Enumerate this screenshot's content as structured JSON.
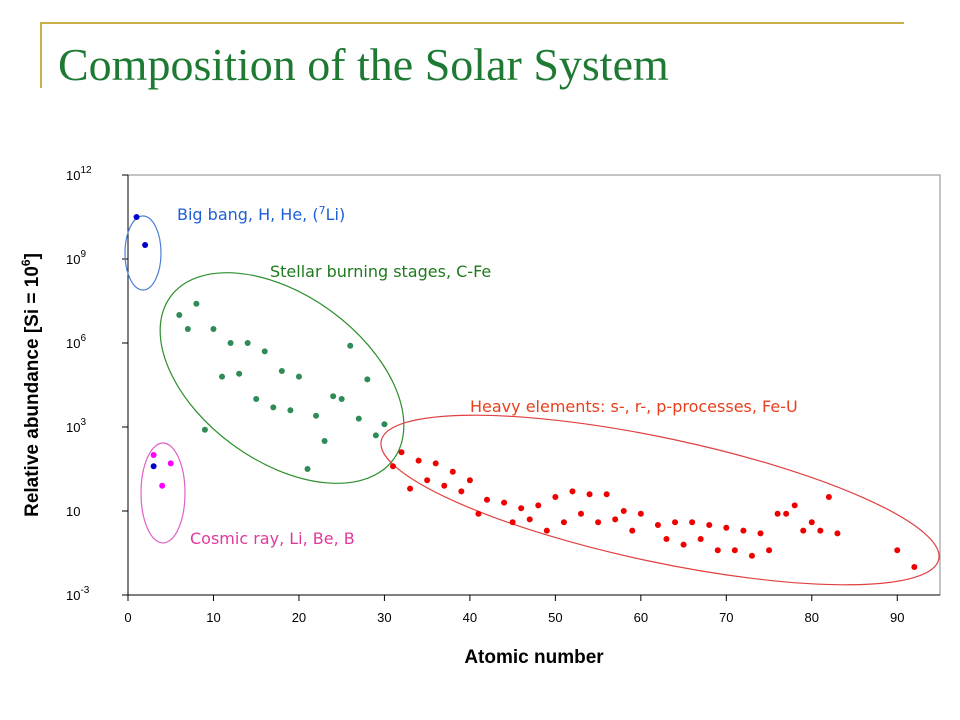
{
  "slide": {
    "title": "Composition of the Solar System"
  },
  "chart_data": {
    "type": "scatter",
    "xlabel": "Atomic number",
    "ylabel": "Relative abundance [Si = 10",
    "ylabel_sup": "6",
    "ylabel_close": "]",
    "xlim": [
      0,
      95
    ],
    "ylim": [
      -3,
      12
    ],
    "y_scale": "log10",
    "grid": false,
    "x_ticks": [
      "0",
      "10",
      "20",
      "30",
      "40",
      "50",
      "60",
      "70",
      "80",
      "90"
    ],
    "y_ticks": [
      {
        "base": "10",
        "exp": "12"
      },
      {
        "base": "10",
        "exp": "9"
      },
      {
        "base": "10",
        "exp": "6"
      },
      {
        "base": "10",
        "exp": "3"
      },
      {
        "base": "10",
        "exp": ""
      },
      {
        "base": "10",
        "exp": "-3"
      }
    ],
    "series": [
      {
        "color": "#0000cc",
        "points": [
          [
            1,
            10.5
          ],
          [
            2,
            9.5
          ]
        ]
      },
      {
        "color": "#2e8b57",
        "points": [
          [
            6,
            7.0
          ],
          [
            7,
            6.5
          ],
          [
            8,
            7.4
          ],
          [
            9,
            2.9
          ],
          [
            10,
            6.5
          ],
          [
            11,
            4.8
          ],
          [
            12,
            6.0
          ],
          [
            13,
            4.9
          ],
          [
            14,
            6.0
          ],
          [
            15,
            4.0
          ],
          [
            16,
            5.7
          ],
          [
            17,
            3.7
          ],
          [
            18,
            5.0
          ],
          [
            19,
            3.6
          ],
          [
            20,
            4.8
          ],
          [
            21,
            1.5
          ],
          [
            22,
            3.4
          ],
          [
            23,
            2.5
          ],
          [
            24,
            4.1
          ],
          [
            25,
            4.0
          ],
          [
            26,
            5.9
          ],
          [
            27,
            3.3
          ],
          [
            28,
            4.7
          ],
          [
            29,
            2.7
          ],
          [
            30,
            3.1
          ]
        ]
      },
      {
        "color": "#ff00ff",
        "points": [
          [
            3,
            2.0
          ],
          [
            4,
            0.9
          ],
          [
            5,
            1.7
          ]
        ],
        "extra_points": [
          [
            3,
            1.6
          ]
        ],
        "extra_color": "#0000cc"
      },
      {
        "color": "#ee0000",
        "points": [
          [
            31,
            1.6
          ],
          [
            32,
            2.1
          ],
          [
            33,
            0.8
          ],
          [
            34,
            1.8
          ],
          [
            35,
            1.1
          ],
          [
            36,
            1.7
          ],
          [
            37,
            0.9
          ],
          [
            38,
            1.4
          ],
          [
            39,
            0.7
          ],
          [
            40,
            1.1
          ],
          [
            41,
            -0.1
          ],
          [
            42,
            0.4
          ],
          [
            44,
            0.3
          ],
          [
            45,
            -0.4
          ],
          [
            46,
            0.1
          ],
          [
            47,
            -0.3
          ],
          [
            48,
            0.2
          ],
          [
            49,
            -0.7
          ],
          [
            50,
            0.5
          ],
          [
            51,
            -0.4
          ],
          [
            52,
            0.7
          ],
          [
            53,
            -0.1
          ],
          [
            54,
            0.6
          ],
          [
            55,
            -0.4
          ],
          [
            56,
            0.6
          ],
          [
            57,
            -0.3
          ],
          [
            58,
            0.0
          ],
          [
            59,
            -0.7
          ],
          [
            60,
            -0.1
          ],
          [
            62,
            -0.5
          ],
          [
            63,
            -1.0
          ],
          [
            64,
            -0.4
          ],
          [
            65,
            -1.2
          ],
          [
            66,
            -0.4
          ],
          [
            67,
            -1.0
          ],
          [
            68,
            -0.5
          ],
          [
            69,
            -1.4
          ],
          [
            70,
            -0.6
          ],
          [
            71,
            -1.4
          ],
          [
            72,
            -0.7
          ],
          [
            73,
            -1.6
          ],
          [
            74,
            -0.8
          ],
          [
            75,
            -1.4
          ],
          [
            76,
            -0.1
          ],
          [
            77,
            -0.1
          ],
          [
            78,
            0.2
          ],
          [
            79,
            -0.7
          ],
          [
            80,
            -0.4
          ],
          [
            81,
            -0.7
          ],
          [
            82,
            0.5
          ],
          [
            83,
            -0.8
          ],
          [
            90,
            -1.4
          ],
          [
            92,
            -2.0
          ]
        ]
      }
    ],
    "annotations": [
      {
        "text": "Big bang, H, He, (",
        "sup": "7",
        "tail": "Li)",
        "color": "#1f5fd6"
      },
      {
        "text": "Stellar burning stages, C-Fe",
        "color": "#1e7a1e"
      },
      {
        "text": "Heavy elements: s-, r-, p-processes, Fe-U",
        "color": "#e8401c"
      },
      {
        "text": "Cosmic ray, Li, Be, B",
        "color": "#e0399e"
      }
    ],
    "group_outlines": [
      {
        "label": "Big bang",
        "color": "#4a7fd6"
      },
      {
        "label": "Stellar burning",
        "color": "#2c8f2c"
      },
      {
        "label": "Heavy elements",
        "color": "#e04040"
      },
      {
        "label": "Cosmic ray",
        "color": "#e060c8"
      }
    ]
  }
}
